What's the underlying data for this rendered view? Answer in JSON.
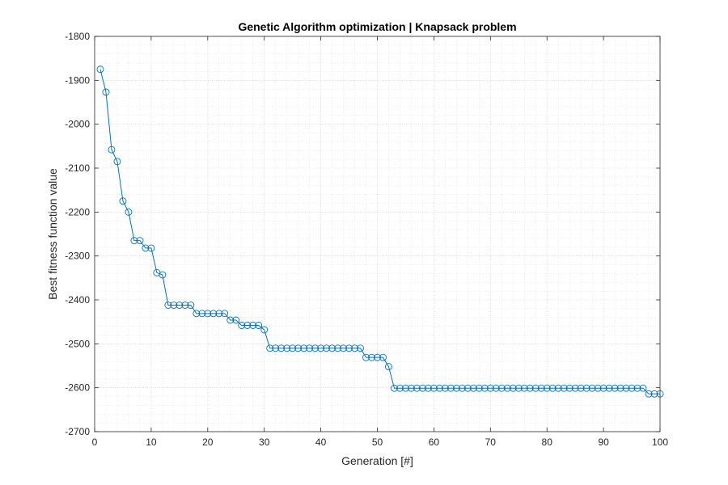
{
  "chart_data": {
    "type": "line",
    "title": "Genetic Algorithm optimization | Knapsack problem",
    "xlabel": "Generation [#]",
    "ylabel": "Best fitness function value",
    "xlim": [
      0,
      100
    ],
    "ylim": [
      -2700,
      -1800
    ],
    "x_ticks": [
      0,
      10,
      20,
      30,
      40,
      50,
      60,
      70,
      80,
      90,
      100
    ],
    "y_ticks": [
      -1800,
      -1900,
      -2000,
      -2100,
      -2200,
      -2300,
      -2400,
      -2500,
      -2600,
      -2700
    ],
    "x_tick_labels": [
      "0",
      "10",
      "20",
      "30",
      "40",
      "50",
      "60",
      "70",
      "80",
      "90",
      "100"
    ],
    "y_tick_labels": [
      "-1800",
      "-1900",
      "-2000",
      "-2100",
      "-2200",
      "-2300",
      "-2400",
      "-2500",
      "-2600",
      "-2700"
    ],
    "grid": true,
    "minor_grid": true,
    "marker": "circle",
    "line_color": "#0072bd",
    "x": [
      1,
      2,
      3,
      4,
      5,
      6,
      7,
      8,
      9,
      10,
      11,
      12,
      13,
      14,
      15,
      16,
      17,
      18,
      19,
      20,
      21,
      22,
      23,
      24,
      25,
      26,
      27,
      28,
      29,
      30,
      31,
      32,
      33,
      34,
      35,
      36,
      37,
      38,
      39,
      40,
      41,
      42,
      43,
      44,
      45,
      46,
      47,
      48,
      49,
      50,
      51,
      52,
      53,
      54,
      55,
      56,
      57,
      58,
      59,
      60,
      61,
      62,
      63,
      64,
      65,
      66,
      67,
      68,
      69,
      70,
      71,
      72,
      73,
      74,
      75,
      76,
      77,
      78,
      79,
      80,
      81,
      82,
      83,
      84,
      85,
      86,
      87,
      88,
      89,
      90,
      91,
      92,
      93,
      94,
      95,
      96,
      97,
      98,
      99,
      100
    ],
    "y": [
      -1875,
      -1927,
      -2058,
      -2085,
      -2175,
      -2200,
      -2265,
      -2265,
      -2282,
      -2282,
      -2338,
      -2343,
      -2412,
      -2412,
      -2412,
      -2412,
      -2412,
      -2431,
      -2431,
      -2431,
      -2431,
      -2431,
      -2431,
      -2446,
      -2446,
      -2458,
      -2458,
      -2458,
      -2458,
      -2468,
      -2510,
      -2510,
      -2510,
      -2510,
      -2510,
      -2510,
      -2510,
      -2510,
      -2510,
      -2510,
      -2510,
      -2510,
      -2510,
      -2510,
      -2510,
      -2510,
      -2510,
      -2531,
      -2531,
      -2531,
      -2531,
      -2552,
      -2601,
      -2601,
      -2601,
      -2601,
      -2601,
      -2601,
      -2601,
      -2601,
      -2601,
      -2601,
      -2601,
      -2601,
      -2601,
      -2601,
      -2601,
      -2601,
      -2601,
      -2601,
      -2601,
      -2601,
      -2601,
      -2601,
      -2601,
      -2601,
      -2601,
      -2601,
      -2601,
      -2601,
      -2601,
      -2601,
      -2601,
      -2601,
      -2601,
      -2601,
      -2601,
      -2601,
      -2601,
      -2601,
      -2601,
      -2601,
      -2601,
      -2601,
      -2601,
      -2601,
      -2601,
      -2614,
      -2614,
      -2614
    ]
  }
}
